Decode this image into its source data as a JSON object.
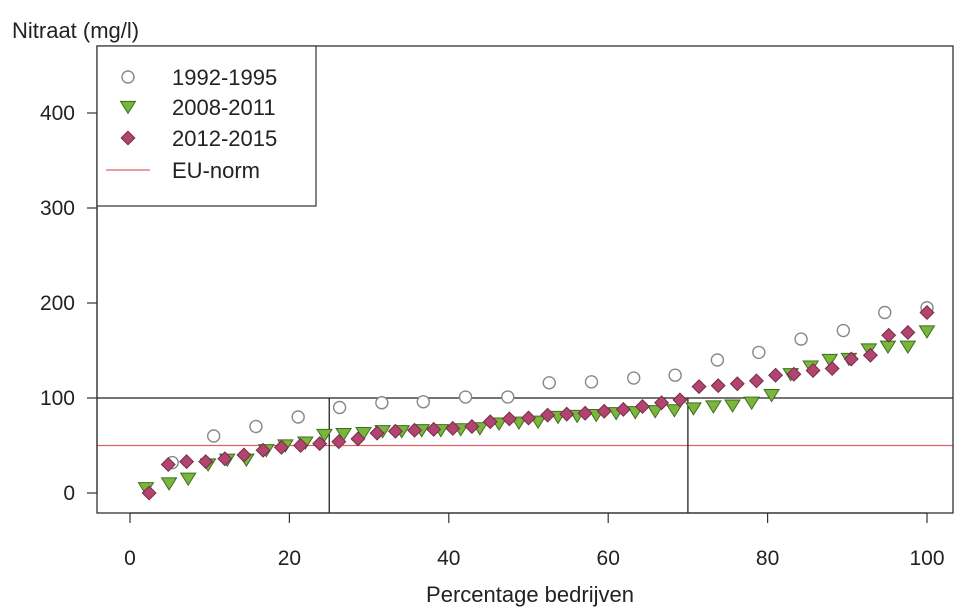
{
  "chart_data": {
    "type": "scatter",
    "ylabel": "Nitraat (mg/l)",
    "xlabel": "Percentage bedrijven",
    "xlim": [
      -4,
      104
    ],
    "ylim": [
      -20,
      470
    ],
    "xticks": [
      "0",
      "20",
      "40",
      "60",
      "80",
      "100"
    ],
    "xtick_values": [
      0,
      20,
      40,
      60,
      80,
      100
    ],
    "yticks": [
      "0",
      "100",
      "200",
      "300",
      "400"
    ],
    "ytick_values": [
      0,
      100,
      200,
      300,
      400
    ],
    "grid": false,
    "legend_position": "top-left",
    "series": [
      {
        "name": "1992-1995",
        "marker": "circle-open",
        "color": "#888888",
        "x": [
          5.3,
          10.5,
          15.8,
          21.1,
          26.3,
          31.6,
          36.8,
          42.1,
          47.4,
          52.6,
          57.9,
          63.2,
          68.4,
          73.7,
          78.9,
          84.2,
          89.5,
          94.7,
          100
        ],
        "y": [
          32,
          60,
          70,
          80,
          90,
          95,
          96,
          101,
          101,
          116,
          117,
          121,
          124,
          140,
          148,
          162,
          171,
          190,
          195
        ]
      },
      {
        "name": "2008-2011",
        "marker": "triangle-down",
        "color": "#7bb63c",
        "x": [
          2.0,
          4.9,
          7.3,
          9.8,
          12.2,
          14.6,
          17.1,
          19.5,
          22.0,
          24.4,
          26.8,
          29.3,
          31.7,
          34.1,
          36.6,
          39.0,
          41.5,
          43.9,
          46.3,
          48.8,
          51.2,
          53.7,
          56.1,
          58.5,
          61.0,
          63.4,
          65.9,
          68.3,
          70.7,
          73.2,
          75.6,
          78.0,
          80.5,
          82.9,
          85.4,
          87.8,
          90.2,
          92.7,
          95.1,
          97.6,
          100
        ],
        "y": [
          5,
          10,
          15,
          30,
          35,
          35,
          45,
          50,
          53,
          61,
          62,
          63,
          65,
          65,
          66,
          66,
          67,
          68,
          73,
          74,
          75,
          80,
          81,
          82,
          84,
          85,
          86,
          87,
          89,
          91,
          92,
          95,
          103,
          125,
          133,
          140,
          141,
          151,
          154,
          154,
          170
        ]
      },
      {
        "name": "2012-2015",
        "marker": "diamond",
        "color": "#b0456f",
        "x": [
          2.4,
          4.8,
          7.1,
          9.5,
          11.9,
          14.3,
          16.7,
          19.0,
          21.4,
          23.8,
          26.2,
          28.6,
          31.0,
          33.3,
          35.7,
          38.1,
          40.5,
          42.9,
          45.2,
          47.6,
          50.0,
          52.4,
          54.8,
          57.1,
          59.5,
          61.9,
          64.3,
          66.7,
          69.0,
          71.4,
          73.8,
          76.2,
          78.6,
          81.0,
          83.3,
          85.7,
          88.1,
          90.5,
          92.9,
          95.2,
          97.6,
          100
        ],
        "y": [
          0,
          30,
          33,
          33,
          36,
          40,
          45,
          48,
          50,
          52,
          54,
          57,
          63,
          65,
          66,
          67,
          68,
          70,
          75,
          78,
          79,
          82,
          83,
          84,
          86,
          88,
          91,
          95,
          98,
          112,
          113,
          115,
          118,
          124,
          125,
          129,
          131,
          141,
          145,
          166,
          169,
          190
        ]
      }
    ],
    "reference_lines": [
      {
        "name": "EU-norm",
        "type": "horizontal",
        "y": 50,
        "color": "#d9646a"
      },
      {
        "type": "horizontal",
        "y": 100,
        "color": "#222222"
      },
      {
        "type": "vertical",
        "x": 25,
        "color": "#222222"
      },
      {
        "type": "vertical",
        "x": 70,
        "color": "#222222"
      }
    ],
    "legend": [
      {
        "label": "1992-1995",
        "marker": "circle-open"
      },
      {
        "label": "2008-2011",
        "marker": "triangle-down"
      },
      {
        "label": "2012-2015",
        "marker": "diamond"
      },
      {
        "label": "EU-norm",
        "marker": "line"
      }
    ]
  }
}
